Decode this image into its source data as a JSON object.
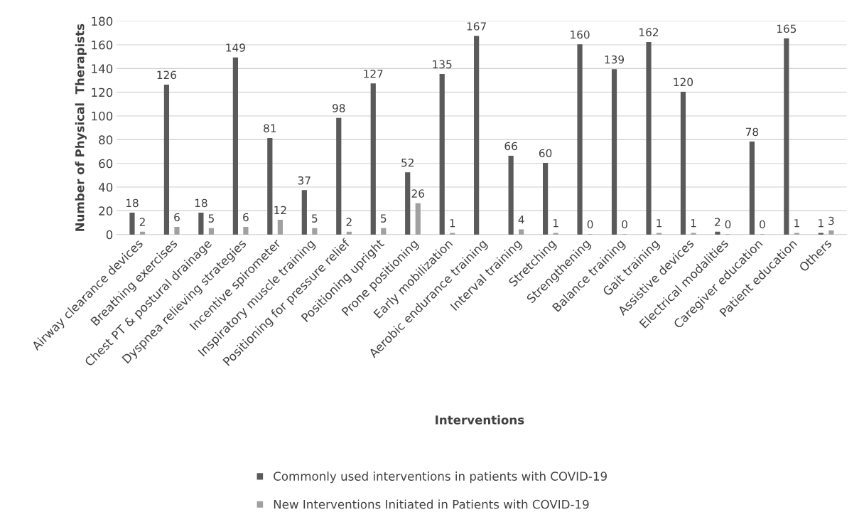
{
  "chart_data": {
    "type": "bar",
    "xlabel": "Interventions",
    "ylabel": "Number of Physical  Therapists",
    "categories": [
      "Airway clearance devices",
      "Breathing exercises",
      "Chest PT & postural drainage",
      "Dyspnea relieving strategies",
      "Incentive spirometer",
      "Inspiratory muscle training",
      "Positioning for pressure relief",
      "Positioning upright",
      "Prone positioning",
      "Early mobilization",
      "Aerobic endurance training",
      "Interval training",
      "Stretching",
      "Strengthening",
      "Balance training",
      "Gait training",
      "Assistive devices",
      "Electrical modalities",
      "Caregiver education",
      "Patient education",
      "Others"
    ],
    "series": [
      {
        "name": "Commonly used interventions in patients with COVID-19",
        "color": "#5a5a5a",
        "values": [
          18,
          126,
          18,
          149,
          81,
          37,
          98,
          127,
          52,
          135,
          167,
          66,
          60,
          160,
          139,
          162,
          120,
          2,
          78,
          165,
          1
        ],
        "value_labels": [
          "18",
          "126",
          "18",
          "149",
          "81",
          "37",
          "98",
          "127",
          "52",
          "135",
          "167",
          "66",
          "60",
          "160",
          "139",
          "162",
          "120",
          "2",
          "78",
          "165",
          "1"
        ]
      },
      {
        "name": "New Interventions Initiated in Patients with COVID-19",
        "color": "#a0a0a0",
        "values": [
          2,
          6,
          5,
          6,
          12,
          5,
          2,
          5,
          26,
          1,
          null,
          4,
          1,
          0,
          0,
          1,
          1,
          0,
          0,
          1,
          3
        ],
        "value_labels": [
          "2",
          "6",
          "5",
          "6",
          "12",
          "5",
          "2",
          "5",
          "26",
          "1",
          null,
          "4",
          "1",
          "0",
          "0",
          "1",
          "1",
          "0",
          "0",
          "1",
          "3"
        ]
      }
    ],
    "ylim": [
      0,
      180
    ],
    "yticks": [
      0,
      20,
      40,
      60,
      80,
      100,
      120,
      140,
      160,
      180
    ],
    "grid": "y",
    "legend": "bottom"
  }
}
